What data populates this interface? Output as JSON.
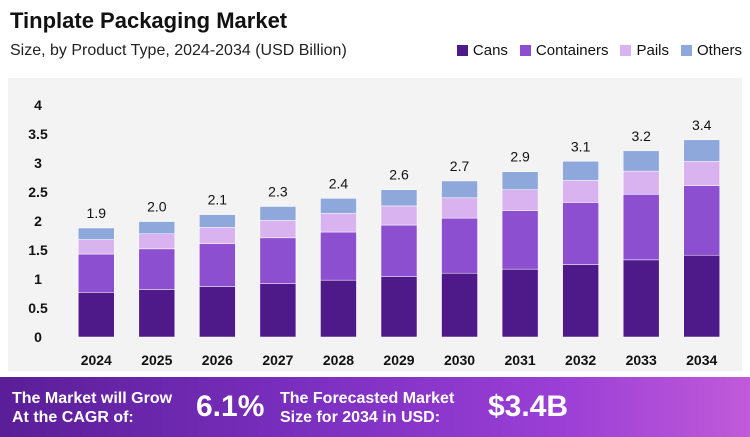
{
  "chart_data": {
    "type": "bar",
    "stacked": true,
    "title": "Tinplate Packaging Market",
    "subtitle": "Size, by Product Type, 2024-2034 (USD Billion)",
    "categories": [
      "2024",
      "2025",
      "2026",
      "2027",
      "2028",
      "2029",
      "2030",
      "2031",
      "2032",
      "2033",
      "2034"
    ],
    "series": [
      {
        "name": "Cans",
        "color": "#4e1a8a",
        "values": [
          0.77,
          0.82,
          0.87,
          0.92,
          0.98,
          1.04,
          1.1,
          1.17,
          1.25,
          1.33,
          1.41
        ]
      },
      {
        "name": "Containers",
        "color": "#8c4fd0",
        "values": [
          0.66,
          0.7,
          0.74,
          0.79,
          0.83,
          0.89,
          0.95,
          1.01,
          1.07,
          1.13,
          1.2
        ]
      },
      {
        "name": "Pails",
        "color": "#d9b3f0",
        "values": [
          0.25,
          0.26,
          0.28,
          0.3,
          0.32,
          0.33,
          0.35,
          0.36,
          0.38,
          0.4,
          0.42
        ]
      },
      {
        "name": "Others",
        "color": "#8fa8db",
        "values": [
          0.2,
          0.21,
          0.22,
          0.24,
          0.26,
          0.28,
          0.29,
          0.31,
          0.33,
          0.35,
          0.37
        ]
      }
    ],
    "totals_labels": [
      "1.9",
      "2.0",
      "2.1",
      "2.3",
      "2.4",
      "2.6",
      "2.7",
      "2.9",
      "3.1",
      "3.2",
      "3.4"
    ],
    "ylim": [
      0,
      4
    ],
    "yticks": [
      "0",
      "0.5",
      "1",
      "1.5",
      "2",
      "2.5",
      "3",
      "3.5",
      "4"
    ],
    "xlabel": "",
    "ylabel": "",
    "legend_position": "top-right",
    "grid": false
  },
  "footer": {
    "cagr_label_line1": "The Market will Grow",
    "cagr_label_line2": "At the CAGR of:",
    "cagr_value": "6.1%",
    "forecast_label_line1": "The Forecasted Market",
    "forecast_label_line2": "Size for 2034 in USD:",
    "forecast_value": "$3.4B"
  }
}
